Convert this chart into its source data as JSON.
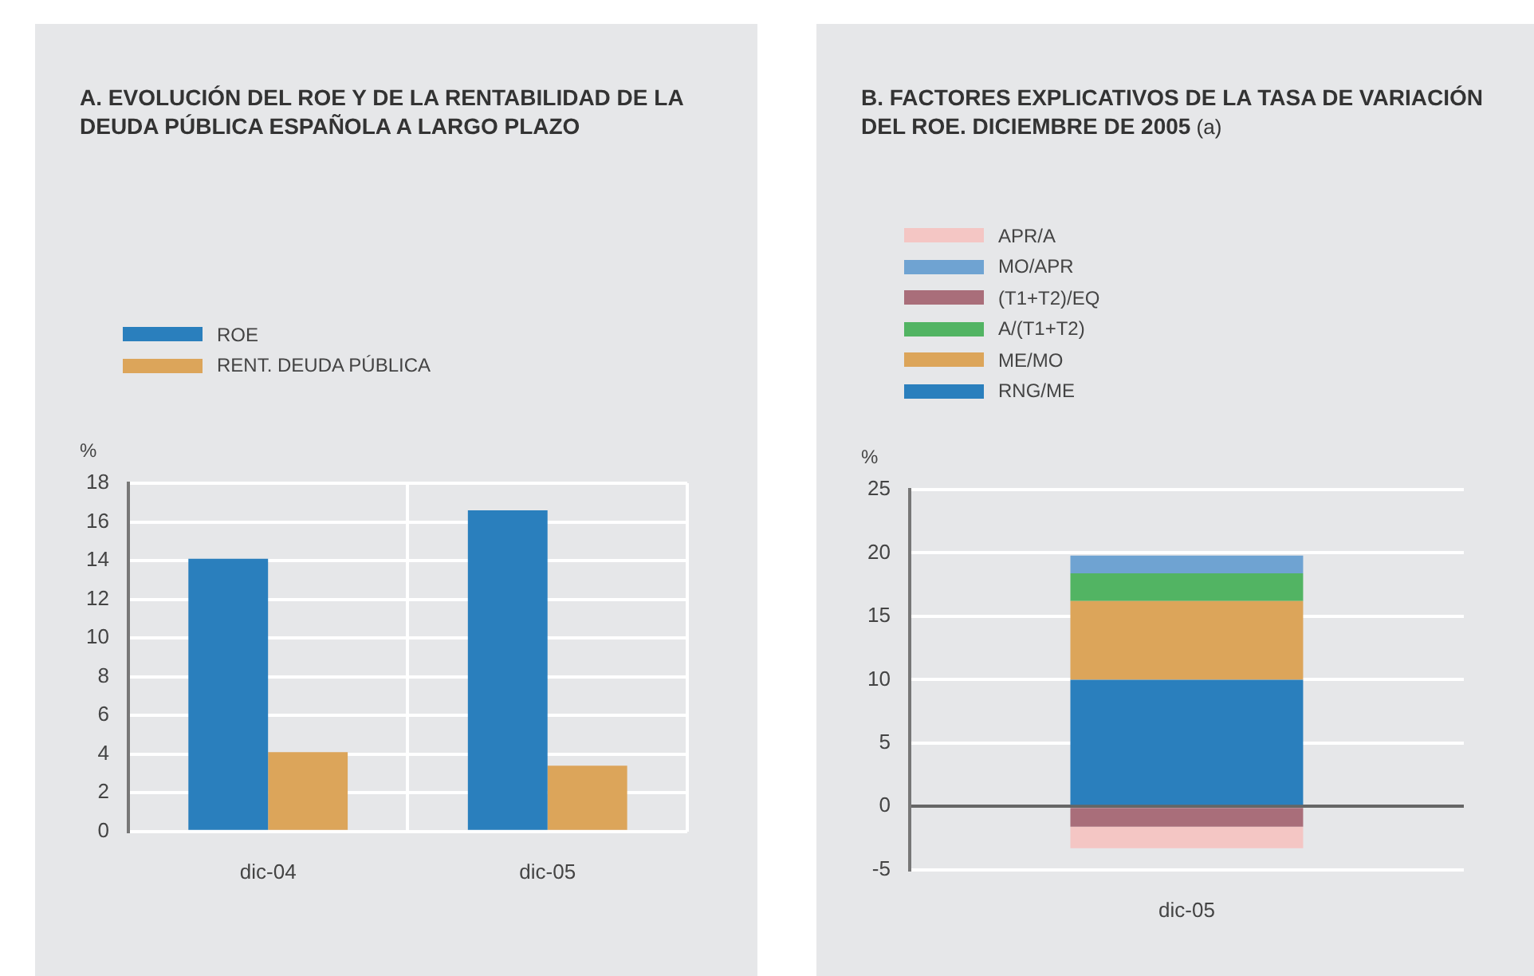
{
  "chart_data": [
    {
      "type": "bar",
      "title": "A.  EVOLUCIÓN DEL ROE Y DE LA RENTABILIDAD DE LA DEUDA PÚBLICA ESPAÑOLA A LARGO PLAZO",
      "ylabel": "%",
      "categories": [
        "dic-04",
        "dic-05"
      ],
      "series": [
        {
          "name": "ROE",
          "color": "#2a7fbd",
          "values": [
            14.1,
            16.6
          ]
        },
        {
          "name": "RENT. DEUDA PÚBLICA",
          "color": "#dca55a",
          "values": [
            4.1,
            3.4
          ]
        }
      ],
      "ylim": [
        0,
        18
      ],
      "yticks": [
        0,
        2,
        4,
        6,
        8,
        10,
        12,
        14,
        16,
        18
      ],
      "grid": true,
      "legend": "top left"
    },
    {
      "type": "bar",
      "title": "B.  FACTORES EXPLICATIVOS DE LA TASA DE VARIACIÓN DEL ROE. DICIEMBRE DE 2005",
      "subtitle": "(a)",
      "ylabel": "%",
      "categories": [
        "dic-05"
      ],
      "stacked": true,
      "series": [
        {
          "name": "RNG/ME",
          "color": "#2a7fbd",
          "values": [
            10.0
          ]
        },
        {
          "name": "ME/MO",
          "color": "#dca55a",
          "values": [
            6.2
          ]
        },
        {
          "name": "A/(T1+T2)",
          "color": "#52b463",
          "values": [
            2.2
          ]
        },
        {
          "name": "(T1+T2)/EQ",
          "color": "#a96e7a",
          "values": [
            -1.6
          ]
        },
        {
          "name": "MO/APR",
          "color": "#6fa3d2",
          "values": [
            1.4
          ]
        },
        {
          "name": "APR/A",
          "color": "#f4c6c4",
          "values": [
            -1.7
          ]
        }
      ],
      "ylim": [
        -5,
        25
      ],
      "yticks": [
        -5,
        0,
        5,
        10,
        15,
        20,
        25
      ],
      "grid": "y",
      "legend": "top left"
    }
  ]
}
